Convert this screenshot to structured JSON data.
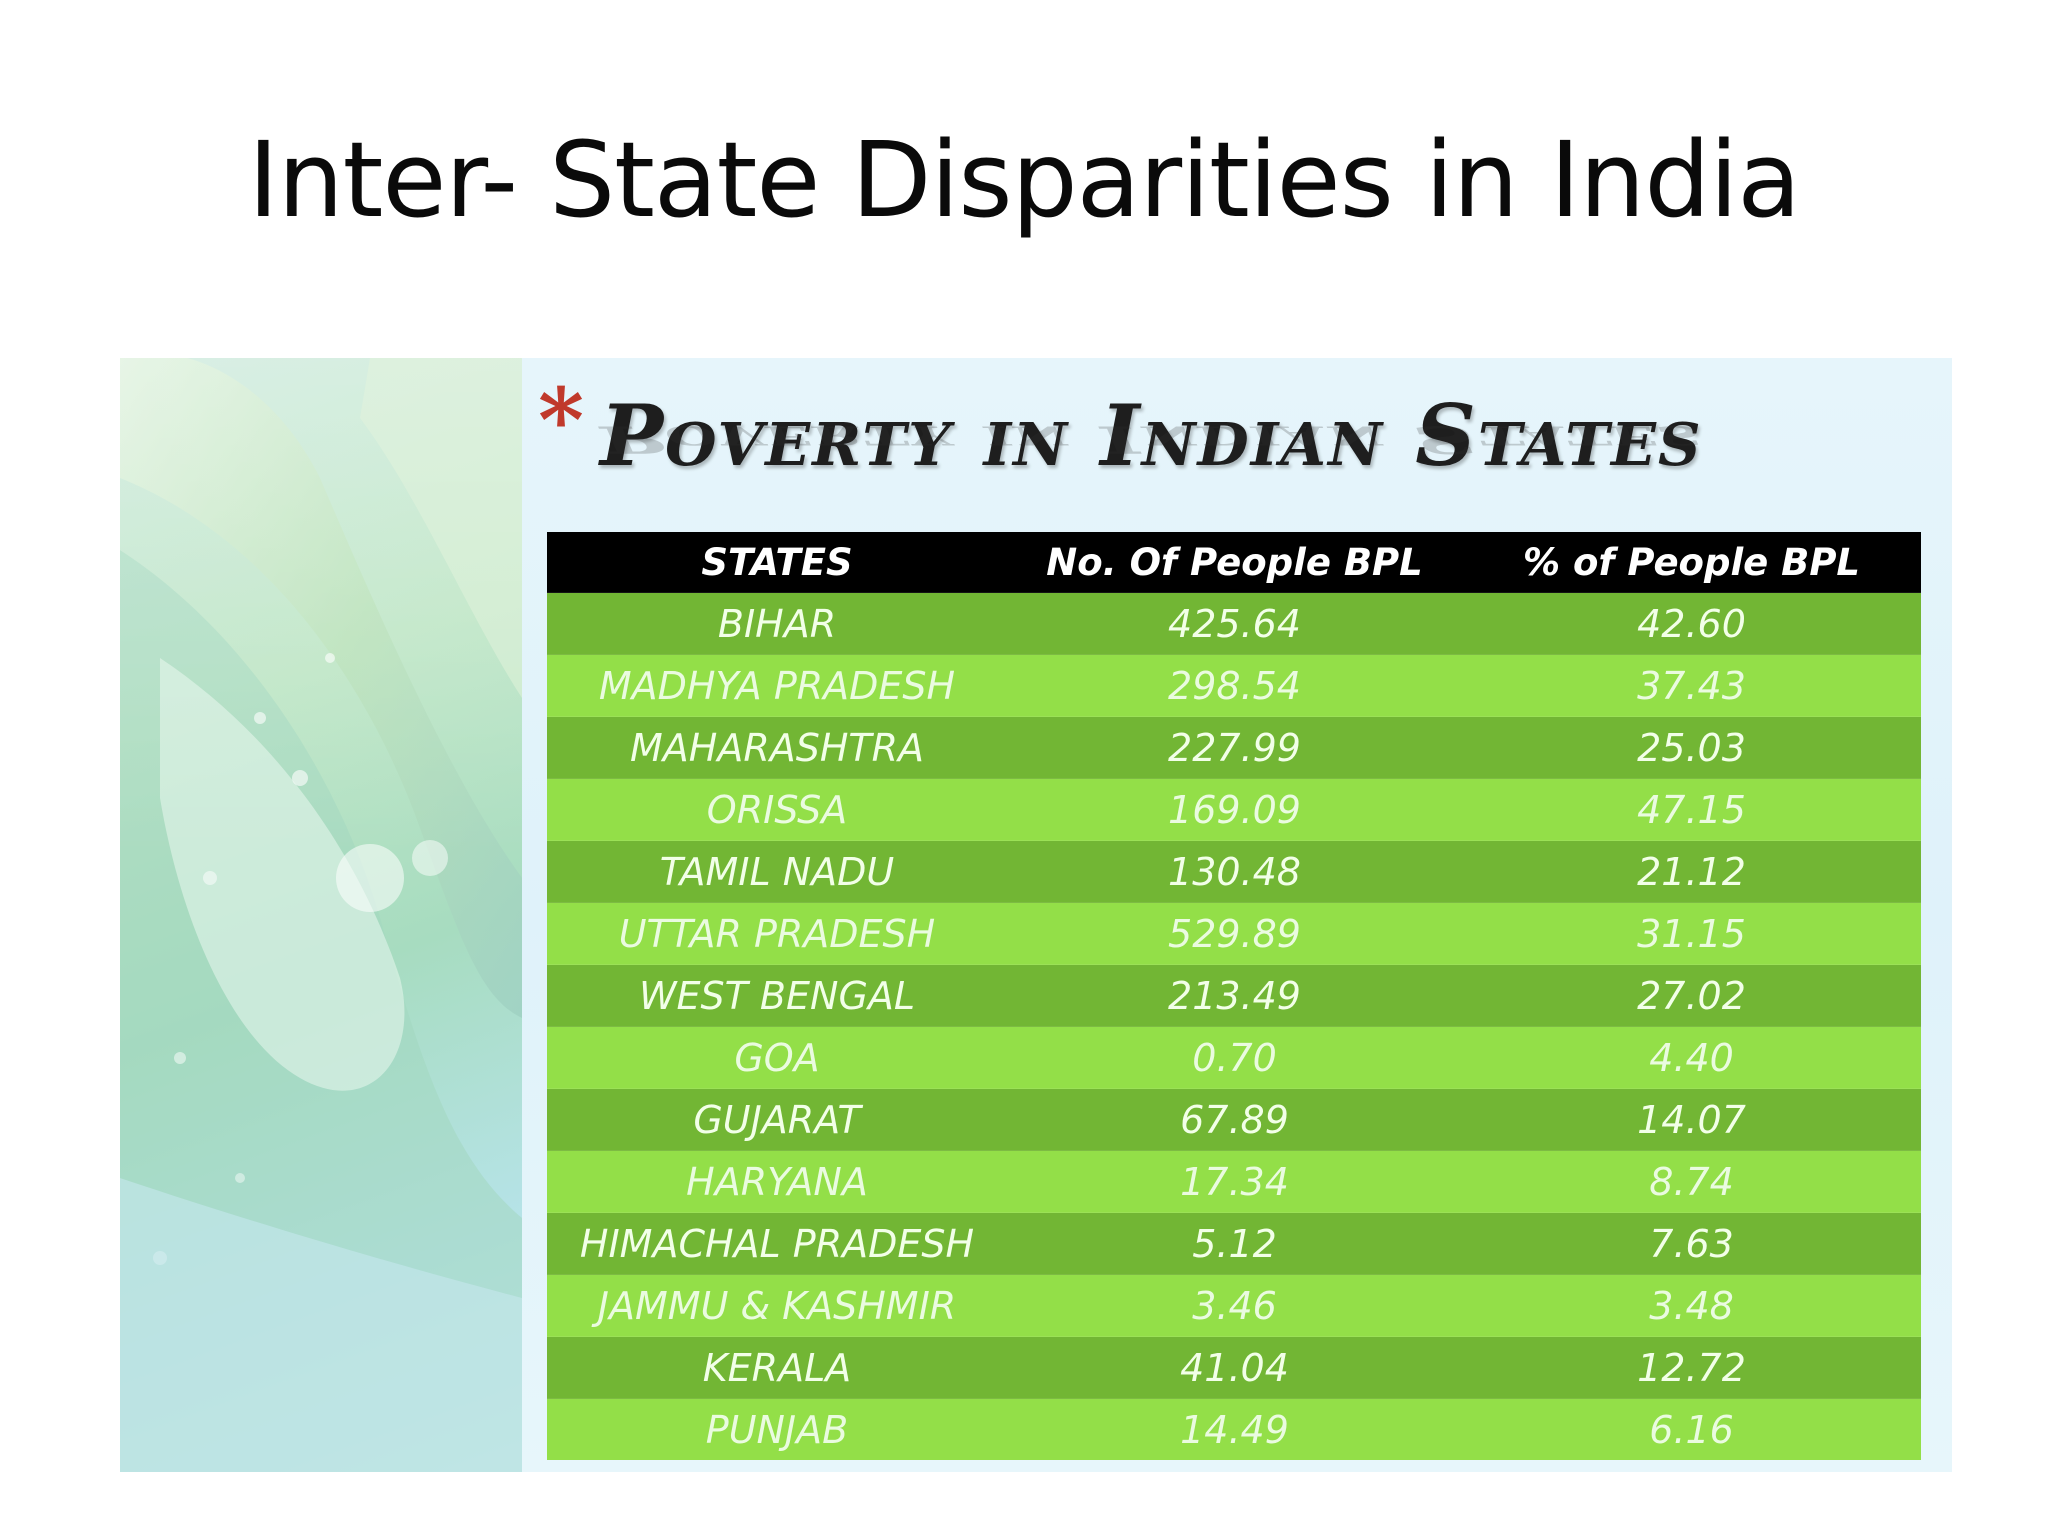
{
  "slide": {
    "title": "Inter- State Disparities in India"
  },
  "image": {
    "asterisk": "*",
    "subtitle": "Poverty in Indian States"
  },
  "table": {
    "headers": [
      "STATES",
      "No. Of People BPL",
      "% of People BPL"
    ],
    "rows": [
      [
        "BIHAR",
        "425.64",
        "42.60"
      ],
      [
        "MADHYA PRADESH",
        "298.54",
        "37.43"
      ],
      [
        "MAHARASHTRA",
        "227.99",
        "25.03"
      ],
      [
        "ORISSA",
        "169.09",
        "47.15"
      ],
      [
        "TAMIL NADU",
        "130.48",
        "21.12"
      ],
      [
        "UTTAR PRADESH",
        "529.89",
        "31.15"
      ],
      [
        "WEST BENGAL",
        "213.49",
        "27.02"
      ],
      [
        "GOA",
        "0.70",
        "4.40"
      ],
      [
        "GUJARAT",
        "67.89",
        "14.07"
      ],
      [
        "HARYANA",
        "17.34",
        "8.74"
      ],
      [
        "HIMACHAL PRADESH",
        "5.12",
        "7.63"
      ],
      [
        "JAMMU & KASHMIR",
        "3.46",
        "3.48"
      ],
      [
        "KERALA",
        "41.04",
        "12.72"
      ],
      [
        "PUNJAB",
        "14.49",
        "6.16"
      ]
    ]
  },
  "colors": {
    "header_bg": "#000000",
    "row_dark": "#72b634",
    "row_light": "#93df48",
    "asterisk": "#c0392b"
  }
}
